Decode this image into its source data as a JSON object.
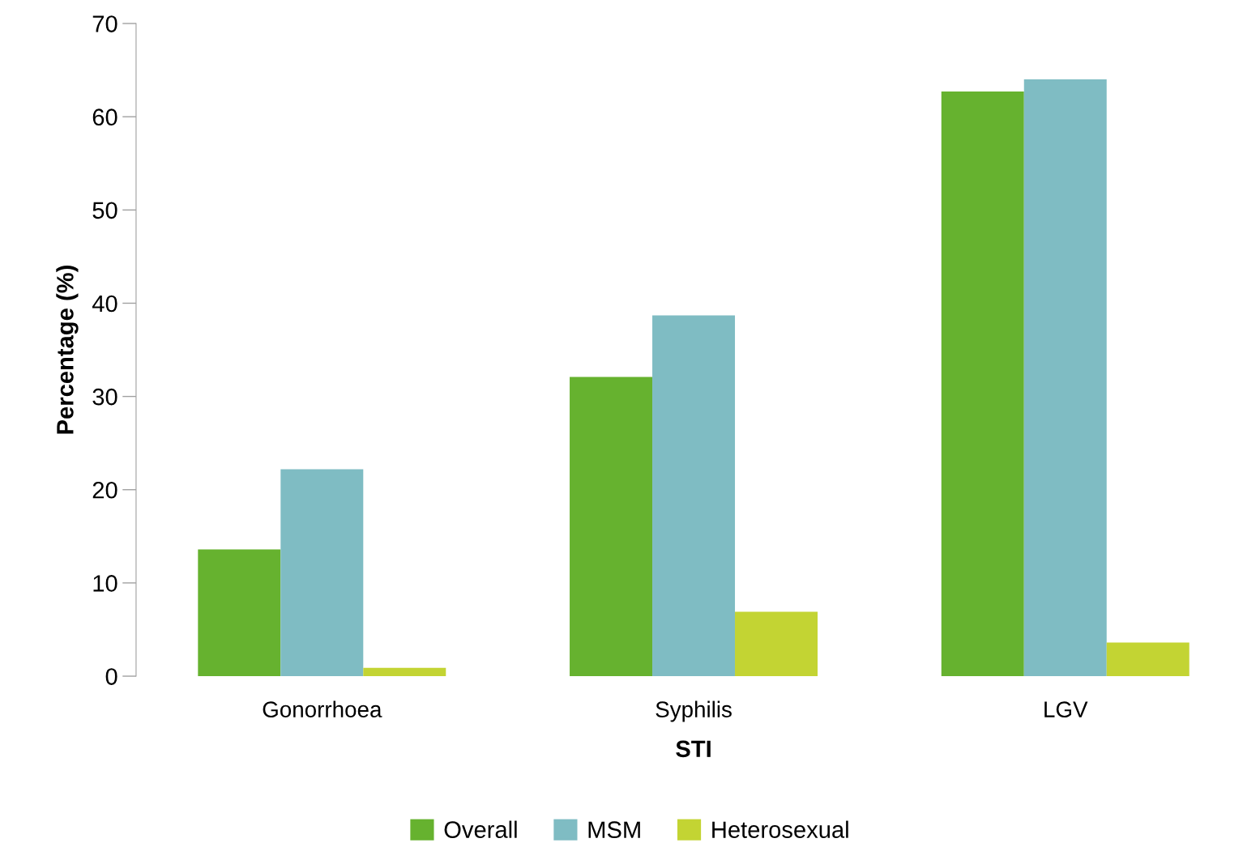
{
  "chart_data": {
    "type": "bar",
    "xlabel": "STI",
    "ylabel": "Percentage (%)",
    "categories": [
      "Gonorrhoea",
      "Syphilis",
      "LGV"
    ],
    "series": [
      {
        "name": "Overall",
        "color": "#66b22f",
        "values": [
          13.6,
          32.1,
          62.7
        ]
      },
      {
        "name": "MSM",
        "color": "#7fbcc3",
        "values": [
          22.2,
          38.7,
          64.0
        ]
      },
      {
        "name": "Heterosexual",
        "color": "#c3d433",
        "values": [
          0.9,
          6.9,
          3.6
        ]
      }
    ],
    "ylim": [
      0,
      70
    ],
    "yticks": [
      0,
      10,
      20,
      30,
      40,
      50,
      60,
      70
    ],
    "grid": false,
    "legend": "bottom"
  }
}
